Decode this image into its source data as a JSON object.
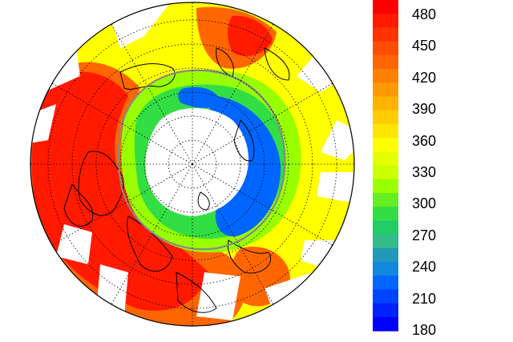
{
  "colorbar": {
    "tick_labels": [
      "480",
      "450",
      "420",
      "390",
      "360",
      "330",
      "300",
      "270",
      "240",
      "210",
      "180"
    ],
    "colors_top_to_bottom": [
      "#ff0000",
      "#ff1a00",
      "#ff3300",
      "#ff4d00",
      "#ff6600",
      "#ff8000",
      "#ff9900",
      "#ffb300",
      "#ffcc00",
      "#ffe600",
      "#ffff00",
      "#e6ff00",
      "#ccff00",
      "#99ff00",
      "#66ee22",
      "#33dd44",
      "#22cc66",
      "#33bb88",
      "#2299bb",
      "#1188dd",
      "#0066ff",
      "#0044ff",
      "#0022ff",
      "#0000ff"
    ]
  },
  "map": {
    "projection": "north-polar-stereographic",
    "fill_palette": {
      "very_high": "#ff1a00",
      "high": "#ff6600",
      "mid_high": "#ffb300",
      "mid": "#ffff00",
      "mid_low": "#99ff00",
      "low": "#33dd44",
      "very_low": "#0066ff",
      "no_data": "#ffffff"
    },
    "contour_color": "#888888",
    "grid_color": "#000000",
    "coastline_color": "#000000"
  }
}
